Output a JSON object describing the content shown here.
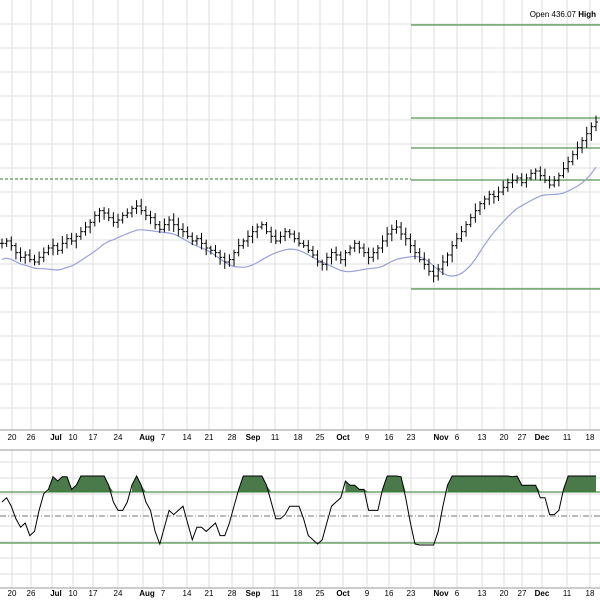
{
  "header": {
    "open_label": "Open",
    "open_value": "436.07",
    "high_label": "High"
  },
  "chart_data": [
    {
      "type": "ohlc",
      "panel": "price",
      "x_tick_labels": [
        "20",
        "26",
        "Jul",
        "10",
        "17",
        "24",
        "Aug",
        "7",
        "14",
        "21",
        "28",
        "Sep",
        "11",
        "18",
        "25",
        "Oct",
        "9",
        "16",
        "23",
        "Nov",
        "6",
        "13",
        "20",
        "27",
        "Dec",
        "11",
        "18"
      ],
      "closes": [
        370,
        371,
        369,
        366,
        364,
        365,
        363,
        362,
        364,
        366,
        368,
        369,
        367,
        370,
        372,
        371,
        373,
        375,
        377,
        379,
        382,
        384,
        383,
        381,
        379,
        380,
        382,
        383,
        385,
        386,
        384,
        382,
        381,
        378,
        376,
        378,
        380,
        378,
        376,
        375,
        373,
        371,
        372,
        370,
        368,
        367,
        366,
        364,
        362,
        363,
        366,
        369,
        371,
        373,
        375,
        377,
        378,
        375,
        373,
        371,
        373,
        375,
        374,
        372,
        370,
        369,
        367,
        365,
        362,
        361,
        364,
        366,
        365,
        363,
        366,
        368,
        370,
        368,
        366,
        364,
        366,
        368,
        371,
        374,
        376,
        377,
        374,
        372,
        369,
        366,
        363,
        361,
        358,
        356,
        359,
        362,
        365,
        369,
        372,
        375,
        378,
        381,
        384,
        387,
        389,
        391,
        390,
        392,
        394,
        396,
        397,
        398,
        396,
        398,
        400,
        401,
        399,
        397,
        395,
        397,
        399,
        402,
        405,
        408,
        411,
        414,
        417,
        420,
        422
      ],
      "series": [
        {
          "name": "",
          "kind": "moving-average",
          "color": "#9aa0d8"
        }
      ],
      "horizontal_lines": [
        {
          "style": "solid",
          "color": "#2e7d2e"
        },
        {
          "style": "solid",
          "color": "#2e7d2e"
        },
        {
          "style": "solid",
          "color": "#2e7d2e"
        },
        {
          "style": "solid",
          "color": "#2e7d2e"
        },
        {
          "style": "solid",
          "color": "#2e7d2e"
        },
        {
          "style": "dashed",
          "color": "#2e7d2e"
        }
      ],
      "grid": true
    },
    {
      "type": "line",
      "panel": "oscillator",
      "x_tick_labels": [
        "20",
        "26",
        "Jul",
        "10",
        "17",
        "24",
        "Aug",
        "7",
        "14",
        "21",
        "28",
        "Sep",
        "11",
        "18",
        "25",
        "Oct",
        "9",
        "16",
        "23",
        "Nov",
        "6",
        "13",
        "20",
        "27",
        "Dec",
        "11",
        "18"
      ],
      "fill_above_color": "#4a7a4a",
      "line_color": "#000000",
      "grid": true
    }
  ],
  "colors": {
    "grid": "#dcdcdc",
    "bars": "#000000",
    "levels": "#2e7d2e"
  }
}
